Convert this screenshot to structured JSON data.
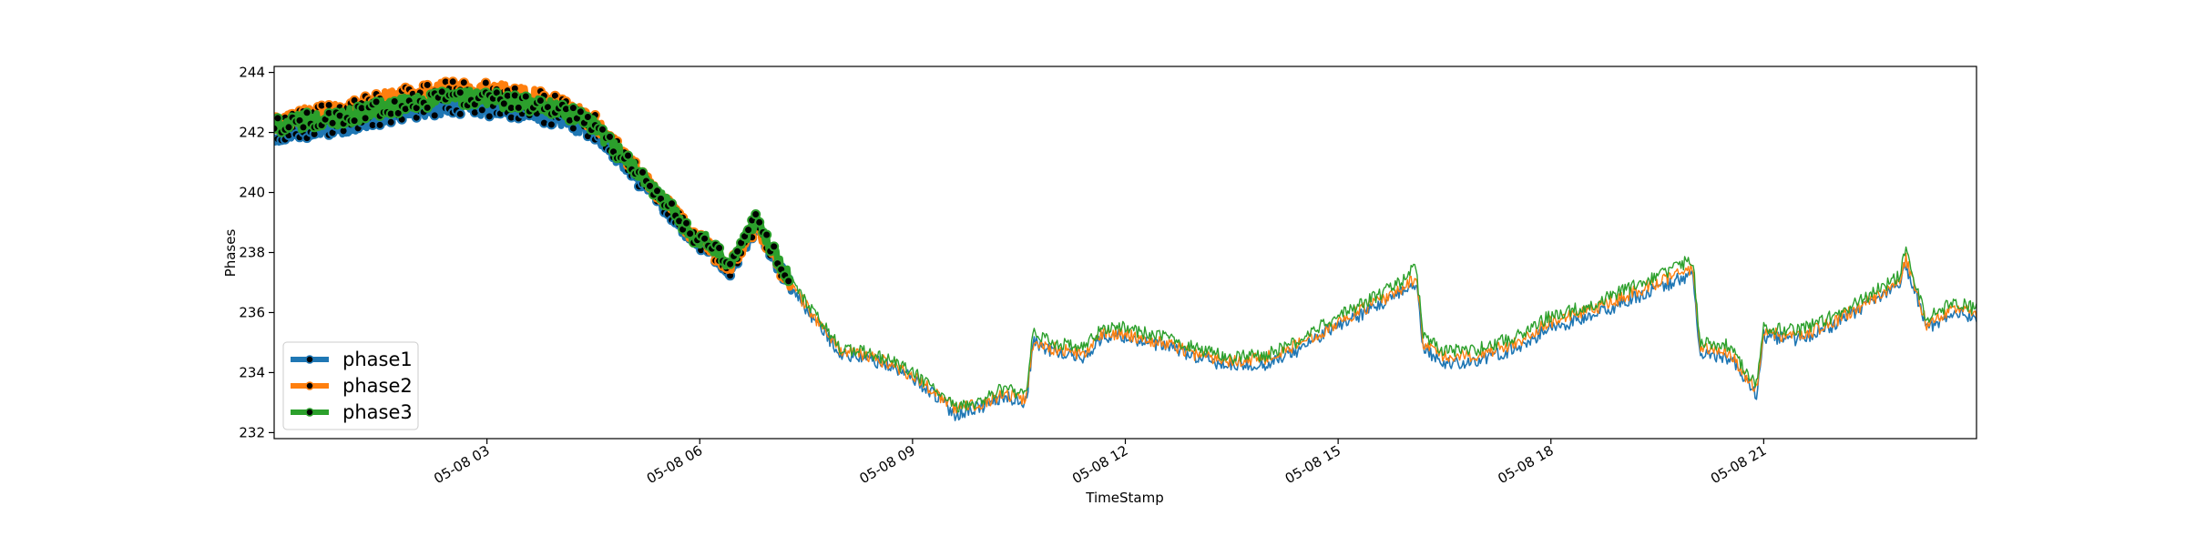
{
  "chart_data": {
    "type": "line",
    "title": "",
    "xlabel": "TimeStamp",
    "ylabel": "Phases",
    "x_range": [
      "05-08 00:00",
      "05-09 00:00"
    ],
    "x_unit": "hours since 05-08 00:00",
    "xticks": [
      {
        "value": 3,
        "label": "05-08 03"
      },
      {
        "value": 6,
        "label": "05-08 06"
      },
      {
        "value": 9,
        "label": "05-08 09"
      },
      {
        "value": 12,
        "label": "05-08 12"
      },
      {
        "value": 15,
        "label": "05-08 15"
      },
      {
        "value": 18,
        "label": "05-08 18"
      },
      {
        "value": 21,
        "label": "05-08 21"
      }
    ],
    "ylim": [
      231.8,
      244.2
    ],
    "yticks": [
      232,
      234,
      236,
      238,
      240,
      242,
      244
    ],
    "legend_position": "lower-left",
    "grid": false,
    "markers_until_hour": 7.3,
    "series": [
      {
        "name": "phase1",
        "color": "#1f77b4",
        "x": [
          0,
          0.5,
          1,
          1.5,
          2,
          2.5,
          3,
          3.5,
          4,
          4.5,
          5,
          5.3,
          5.6,
          5.9,
          6.1,
          6.4,
          6.8,
          7.1,
          7.3,
          7.6,
          8,
          8.3,
          8.7,
          9,
          9.3,
          9.6,
          10,
          10.3,
          10.6,
          10.7,
          11,
          11.4,
          11.7,
          12,
          12.3,
          12.7,
          13,
          13.5,
          14,
          14.4,
          14.8,
          15.1,
          15.5,
          15.8,
          16.1,
          16.2,
          16.5,
          17,
          17.5,
          18,
          18.5,
          19,
          19.5,
          20,
          20.1,
          20.5,
          20.9,
          21,
          21.5,
          22,
          22.5,
          22.9,
          23,
          23.3,
          23.7,
          24
        ],
        "y": [
          241.9,
          242.1,
          242.2,
          242.5,
          242.7,
          242.9,
          242.8,
          242.7,
          242.5,
          242.0,
          240.8,
          240.0,
          239.3,
          238.3,
          238.2,
          237.3,
          238.8,
          237.5,
          236.8,
          235.8,
          234.6,
          234.5,
          234.2,
          233.8,
          233.3,
          232.6,
          232.9,
          233.2,
          233.0,
          235.0,
          234.7,
          234.5,
          235.2,
          235.2,
          235.0,
          234.8,
          234.5,
          234.2,
          234.3,
          234.7,
          235.3,
          235.7,
          236.1,
          236.5,
          237.0,
          234.8,
          234.3,
          234.4,
          234.8,
          235.5,
          235.8,
          236.3,
          236.8,
          237.3,
          234.6,
          234.5,
          233.3,
          235.2,
          235.1,
          235.6,
          236.3,
          236.9,
          237.6,
          235.5,
          236.0,
          235.8
        ]
      },
      {
        "name": "phase2",
        "color": "#ff7f0e",
        "x": [
          0,
          0.5,
          1,
          1.5,
          2,
          2.5,
          3,
          3.5,
          4,
          4.5,
          5,
          5.3,
          5.6,
          5.9,
          6.1,
          6.4,
          6.8,
          7.1,
          7.3,
          7.6,
          8,
          8.3,
          8.7,
          9,
          9.3,
          9.6,
          10,
          10.3,
          10.6,
          10.7,
          11,
          11.4,
          11.7,
          12,
          12.3,
          12.7,
          13,
          13.5,
          14,
          14.4,
          14.8,
          15.1,
          15.5,
          15.8,
          16.1,
          16.2,
          16.5,
          17,
          17.5,
          18,
          18.5,
          19,
          19.5,
          20,
          20.1,
          20.5,
          20.9,
          21,
          21.5,
          22,
          22.5,
          22.9,
          23,
          23.3,
          23.7,
          24
        ],
        "y": [
          242.3,
          242.6,
          242.7,
          243.1,
          243.3,
          243.5,
          243.4,
          243.3,
          243.0,
          242.4,
          241.1,
          240.3,
          239.5,
          238.5,
          238.3,
          237.4,
          238.9,
          237.6,
          236.9,
          235.9,
          234.7,
          234.6,
          234.3,
          233.9,
          233.4,
          232.8,
          233.0,
          233.3,
          233.1,
          235.0,
          234.8,
          234.6,
          235.3,
          235.3,
          235.1,
          234.9,
          234.6,
          234.4,
          234.5,
          234.9,
          235.4,
          235.8,
          236.3,
          236.6,
          237.2,
          235.0,
          234.5,
          234.6,
          235.0,
          235.7,
          236.0,
          236.5,
          237.0,
          237.5,
          234.8,
          234.7,
          233.4,
          235.3,
          235.2,
          235.7,
          236.4,
          237.0,
          237.8,
          235.6,
          236.2,
          236.0
        ]
      },
      {
        "name": "phase3",
        "color": "#2ca02c",
        "x": [
          0,
          0.5,
          1,
          1.5,
          2,
          2.5,
          3,
          3.5,
          4,
          4.5,
          5,
          5.3,
          5.6,
          5.9,
          6.1,
          6.4,
          6.8,
          7.1,
          7.3,
          7.6,
          8,
          8.3,
          8.7,
          9,
          9.3,
          9.6,
          10,
          10.3,
          10.6,
          10.7,
          11,
          11.4,
          11.7,
          12,
          12.3,
          12.7,
          13,
          13.5,
          14,
          14.4,
          14.8,
          15.1,
          15.5,
          15.8,
          16.1,
          16.2,
          16.5,
          17,
          17.5,
          18,
          18.5,
          19,
          19.5,
          20,
          20.1,
          20.5,
          20.9,
          21,
          21.5,
          22,
          22.5,
          22.9,
          23,
          23.3,
          23.7,
          24
        ],
        "y": [
          242.2,
          242.4,
          242.5,
          242.8,
          243.0,
          243.2,
          243.1,
          243.0,
          242.8,
          242.2,
          241.0,
          240.2,
          239.5,
          238.5,
          238.4,
          237.6,
          239.1,
          237.8,
          237.0,
          236.0,
          234.8,
          234.7,
          234.4,
          234.0,
          233.5,
          232.8,
          233.1,
          233.5,
          233.2,
          235.3,
          235.0,
          234.8,
          235.5,
          235.5,
          235.3,
          235.1,
          234.8,
          234.5,
          234.6,
          235.0,
          235.6,
          236.0,
          236.5,
          236.9,
          237.5,
          235.2,
          234.7,
          234.8,
          235.2,
          235.9,
          236.2,
          236.7,
          237.2,
          237.8,
          235.0,
          234.9,
          233.6,
          235.5,
          235.4,
          235.9,
          236.6,
          237.2,
          238.1,
          235.8,
          236.4,
          236.1
        ]
      }
    ]
  }
}
